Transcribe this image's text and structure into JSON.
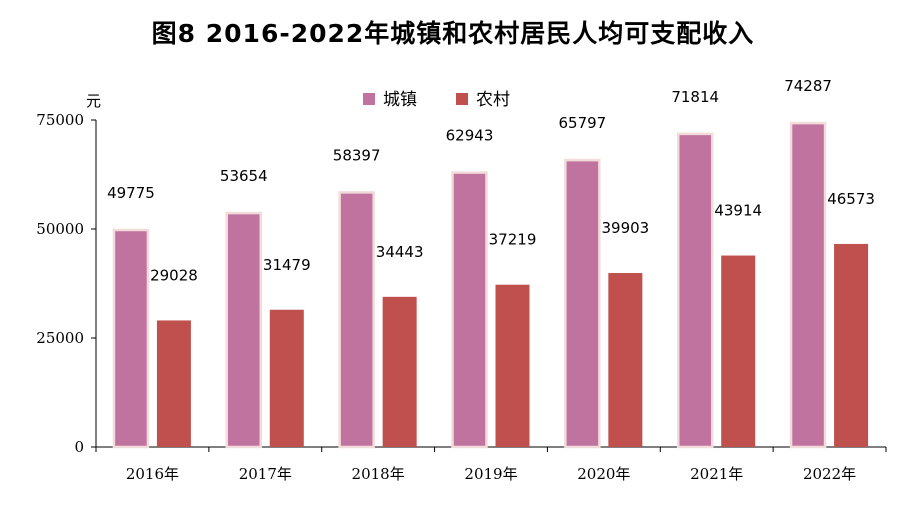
{
  "title": "图8   2016-2022年城镇和农村居民人均可支配收入",
  "chart_data": {
    "type": "bar",
    "title": "图8   2016-2022年城镇和农村居民人均可支配收入",
    "ylabel": "元",
    "xlabel": "",
    "ylim": [
      0,
      75000
    ],
    "yticks": [
      "0",
      "25000",
      "50000",
      "75000"
    ],
    "categories": [
      "2016年",
      "2017年",
      "2018年",
      "2019年",
      "2020年",
      "2021年",
      "2022年"
    ],
    "series": [
      {
        "name": "城镇",
        "color": "#c0739f",
        "values": [
          49775,
          53654,
          58397,
          62943,
          65797,
          71814,
          74287
        ],
        "labels": [
          "49775",
          "53654",
          "58397",
          "62943",
          "65797",
          "71814",
          "74287"
        ]
      },
      {
        "name": "农村",
        "color": "#c0504d",
        "values": [
          29028,
          31479,
          34443,
          37219,
          39903,
          43914,
          46573
        ],
        "labels": [
          "29028",
          "31479",
          "34443",
          "37219",
          "39903",
          "43914",
          "46573"
        ]
      }
    ],
    "legend_position": "top-center",
    "grid": false
  }
}
